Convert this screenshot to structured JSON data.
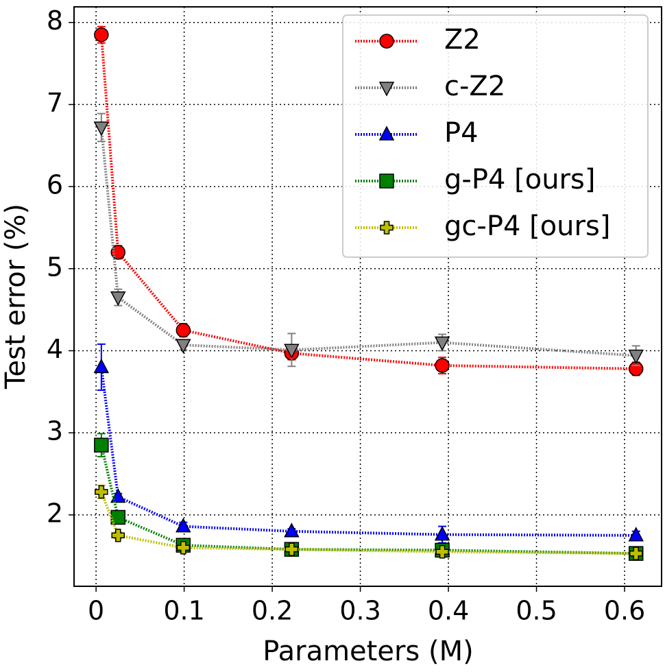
{
  "chart_data": {
    "type": "line",
    "xlabel": "Parameters (M)",
    "ylabel": "Test error (%)",
    "x": [
      0.006,
      0.025,
      0.099,
      0.222,
      0.393,
      0.613
    ],
    "series": [
      {
        "name": "Z2",
        "color": "#ff0000",
        "marker": "circle",
        "values": [
          7.85,
          5.2,
          4.25,
          3.97,
          3.82,
          3.78
        ],
        "errors": [
          0.1,
          0.08,
          0.08,
          0.08,
          0.1,
          0.08
        ]
      },
      {
        "name": "c-Z2",
        "color": "#808080",
        "marker": "triangle-down",
        "values": [
          6.72,
          4.65,
          4.07,
          4.01,
          4.1,
          3.94
        ],
        "errors": [
          0.17,
          0.1,
          0.06,
          0.2,
          0.1,
          0.12
        ]
      },
      {
        "name": "P4",
        "color": "#0000ff",
        "marker": "triangle-up",
        "values": [
          3.8,
          2.22,
          1.86,
          1.8,
          1.76,
          1.75
        ],
        "errors": [
          0.28,
          0.04,
          0.05,
          0.03,
          0.1,
          0.05
        ]
      },
      {
        "name": "g-P4 [ours]",
        "color": "#008000",
        "marker": "square",
        "values": [
          2.85,
          1.97,
          1.63,
          1.58,
          1.57,
          1.53
        ],
        "errors": [
          0.14,
          0.05,
          0.04,
          0.03,
          0.04,
          0.03
        ]
      },
      {
        "name": "gc-P4 [ours]",
        "color": "#bfbf00",
        "marker": "plus",
        "values": [
          2.28,
          1.75,
          1.6,
          1.58,
          1.55,
          1.53
        ],
        "errors": [
          0.08,
          0.04,
          0.03,
          0.02,
          0.03,
          0.02
        ]
      }
    ],
    "xlim": [
      -0.025,
      0.642
    ],
    "ylim": [
      1.13,
      8.19
    ],
    "xticks": [
      0,
      0.1,
      0.2,
      0.3,
      0.4,
      0.5,
      0.6
    ],
    "yticks": [
      2,
      3,
      4,
      5,
      6,
      7,
      8
    ],
    "grid": true,
    "legend": "upper right"
  }
}
